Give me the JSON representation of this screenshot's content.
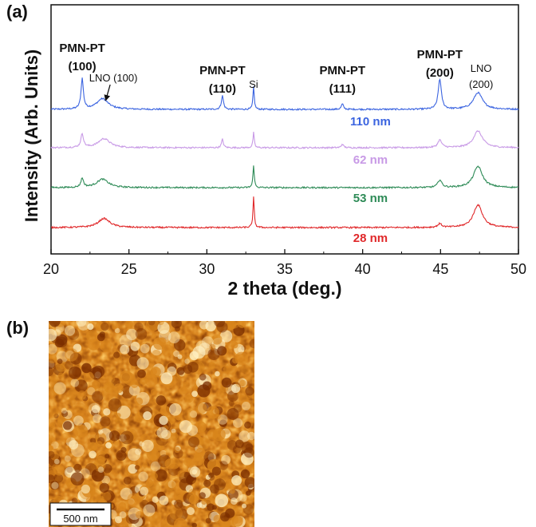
{
  "figure": {
    "panel_a_label": "(a)",
    "panel_b_label": "(b)"
  },
  "chart_data": {
    "type": "line",
    "title": "",
    "xlabel": "2 theta (deg.)",
    "ylabel": "Intensity (Arb. Units)",
    "xlim": [
      20,
      50
    ],
    "xticks": [
      20,
      25,
      30,
      35,
      40,
      45,
      50
    ],
    "grid": false,
    "series": [
      {
        "name": "110 nm",
        "color": "#3b64e0",
        "peaks": [
          {
            "x": 22.0,
            "height": 1.0,
            "width": 0.09
          },
          {
            "x": 23.3,
            "height": 0.35,
            "width": 0.45
          },
          {
            "x": 31.0,
            "height": 0.45,
            "width": 0.08
          },
          {
            "x": 33.0,
            "height": 0.75,
            "width": 0.05
          },
          {
            "x": 38.7,
            "height": 0.18,
            "width": 0.08
          },
          {
            "x": 44.95,
            "height": 1.0,
            "width": 0.12
          },
          {
            "x": 47.4,
            "height": 0.55,
            "width": 0.35
          }
        ]
      },
      {
        "name": "62 nm",
        "color": "#c89ae6",
        "peaks": [
          {
            "x": 22.0,
            "height": 0.45,
            "width": 0.1
          },
          {
            "x": 23.4,
            "height": 0.3,
            "width": 0.45
          },
          {
            "x": 31.0,
            "height": 0.28,
            "width": 0.07
          },
          {
            "x": 33.0,
            "height": 0.5,
            "width": 0.05
          },
          {
            "x": 38.7,
            "height": 0.12,
            "width": 0.08
          },
          {
            "x": 44.95,
            "height": 0.25,
            "width": 0.15
          },
          {
            "x": 47.4,
            "height": 0.55,
            "width": 0.35
          }
        ]
      },
      {
        "name": "53 nm",
        "color": "#2e8b57",
        "peaks": [
          {
            "x": 22.0,
            "height": 0.3,
            "width": 0.1
          },
          {
            "x": 23.3,
            "height": 0.28,
            "width": 0.45
          },
          {
            "x": 33.0,
            "height": 0.75,
            "width": 0.05
          },
          {
            "x": 44.95,
            "height": 0.25,
            "width": 0.15
          },
          {
            "x": 47.4,
            "height": 0.7,
            "width": 0.35
          }
        ]
      },
      {
        "name": "28 nm",
        "color": "#e0282a",
        "peaks": [
          {
            "x": 23.4,
            "height": 0.3,
            "width": 0.45
          },
          {
            "x": 33.0,
            "height": 1.0,
            "width": 0.05
          },
          {
            "x": 44.95,
            "height": 0.12,
            "width": 0.15
          },
          {
            "x": 47.4,
            "height": 0.75,
            "width": 0.35
          }
        ]
      }
    ],
    "annotations": [
      {
        "line1": "PMN-PT",
        "line2": "(100)",
        "x": 22.0,
        "bold": true
      },
      {
        "line1": "LNO (100)",
        "line2": "",
        "x": 24.0,
        "bold": false,
        "arrow_to": 23.4
      },
      {
        "line1": "PMN-PT",
        "line2": "(110)",
        "x": 31.0,
        "bold": true
      },
      {
        "line1": "Si",
        "line2": "",
        "x": 33.0,
        "bold": false
      },
      {
        "line1": "PMN-PT",
        "line2": "(111)",
        "x": 38.7,
        "bold": true
      },
      {
        "line1": "PMN-PT",
        "line2": "(200)",
        "x": 44.95,
        "bold": true
      },
      {
        "line1": "LNO",
        "line2": "(200)",
        "x": 47.6,
        "bold": false
      }
    ]
  },
  "afm_image": {
    "scale_bar_label": "500 nm",
    "color_dark": "#7a2e00",
    "color_mid": "#d9861c",
    "color_light": "#fff1c4"
  }
}
